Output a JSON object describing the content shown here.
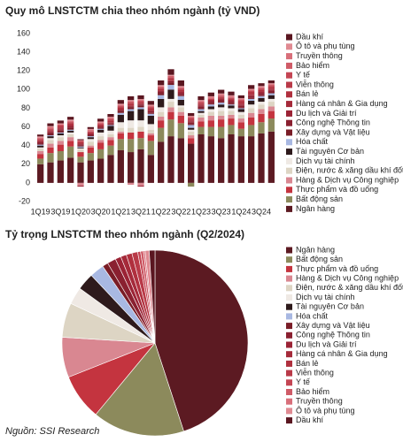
{
  "chart_data": [
    {
      "type": "stacked-bar",
      "title": "Quy mô LNSTCTM chia theo nhóm ngành (tỷ VND)",
      "categories": [
        "1Q19",
        null,
        "3Q19",
        null,
        "1Q20",
        null,
        "3Q20",
        null,
        "1Q21",
        null,
        "3Q21",
        null,
        "1Q22",
        null,
        "3Q22",
        null,
        "1Q23",
        null,
        "3Q23",
        null,
        "1Q24",
        null,
        "3Q24",
        null
      ],
      "ylim": [
        -20,
        160
      ],
      "yticks": [
        -20,
        0,
        20,
        40,
        60,
        80,
        100,
        120,
        140,
        160
      ],
      "grid": false,
      "series": [
        {
          "name": "Ngân hàng",
          "color": "#5c1a22",
          "values": [
            20,
            22,
            24,
            27,
            22,
            24,
            26,
            30,
            35,
            33,
            36,
            30,
            44,
            50,
            48,
            42,
            52,
            50,
            48,
            52,
            50,
            50,
            53,
            55
          ]
        },
        {
          "name": "Bất động sản",
          "color": "#8c8a5c",
          "values": [
            6,
            10,
            10,
            12,
            6,
            8,
            10,
            10,
            12,
            14,
            12,
            15,
            15,
            18,
            16,
            -4,
            8,
            10,
            12,
            10,
            8,
            12,
            12,
            14
          ]
        },
        {
          "name": "Thực phẩm và đồ uống",
          "color": "#c4343f",
          "values": [
            5,
            6,
            7,
            6,
            5,
            6,
            7,
            6,
            6,
            7,
            7,
            6,
            8,
            8,
            8,
            6,
            6,
            7,
            8,
            7,
            7,
            8,
            9,
            8
          ]
        },
        {
          "name": "Hàng & Dịch vụ Công nghiệp",
          "color": "#d98791",
          "values": [
            3,
            4,
            4,
            4,
            -3,
            2,
            3,
            3,
            2,
            -2,
            -3,
            2,
            4,
            5,
            4,
            3,
            4,
            5,
            4,
            4,
            4,
            5,
            5,
            5
          ]
        },
        {
          "name": "Điện, nước & xăng dầu khí đốt",
          "color": "#ddd5c4",
          "values": [
            3,
            4,
            4,
            3,
            3,
            4,
            4,
            3,
            4,
            5,
            5,
            4,
            5,
            6,
            5,
            4,
            3,
            4,
            5,
            4,
            4,
            5,
            5,
            5
          ]
        },
        {
          "name": "Dịch vụ tài chính",
          "color": "#efe9e4",
          "values": [
            1,
            2,
            2,
            2,
            1,
            3,
            4,
            4,
            6,
            8,
            7,
            6,
            5,
            3,
            2,
            2,
            2,
            3,
            4,
            3,
            3,
            4,
            3,
            3
          ]
        },
        {
          "name": "Tài nguyên Cơ bản",
          "color": "#2e1a1c",
          "values": [
            2,
            2,
            2,
            2,
            1,
            2,
            3,
            5,
            8,
            10,
            12,
            9,
            9,
            10,
            6,
            2,
            2,
            3,
            3,
            3,
            3,
            4,
            4,
            4
          ]
        },
        {
          "name": "Hóa chất",
          "color": "#a8b8e2",
          "values": [
            1,
            1,
            1,
            1,
            1,
            1,
            1,
            1,
            2,
            2,
            2,
            2,
            4,
            5,
            4,
            3,
            2,
            2,
            2,
            1,
            1,
            2,
            2,
            2
          ]
        },
        {
          "name": "Xây dựng và Vật liệu",
          "color": "#7a1d27",
          "values": [
            1,
            2,
            2,
            2,
            1,
            1,
            1,
            1,
            2,
            2,
            2,
            1,
            2,
            2,
            1,
            1,
            1,
            1,
            1,
            1,
            1,
            1,
            1,
            1
          ]
        },
        {
          "name": "Công nghệ Thông tin",
          "color": "#8a2030",
          "values": [
            1,
            1,
            1,
            1,
            1,
            1,
            1,
            1,
            1,
            1,
            1,
            2,
            2,
            2,
            2,
            2,
            2,
            2,
            2,
            2,
            2,
            2,
            2,
            2
          ]
        },
        {
          "name": "Du lịch và Giải trí",
          "color": "#9b2335",
          "values": [
            1,
            1,
            1,
            1,
            -1,
            0,
            0,
            0,
            0,
            0,
            -1,
            0,
            0,
            0,
            1,
            1,
            1,
            1,
            1,
            1,
            1,
            1,
            1,
            1
          ]
        },
        {
          "name": "Hàng cá nhân & Gia dụng",
          "color": "#a52a3a",
          "values": [
            1,
            1,
            1,
            1,
            1,
            1,
            1,
            1,
            1,
            1,
            1,
            1,
            1,
            1,
            1,
            1,
            1,
            1,
            1,
            1,
            1,
            1,
            1,
            1
          ]
        },
        {
          "name": "Bán lẻ",
          "color": "#b0303e",
          "values": [
            1,
            1,
            1,
            2,
            1,
            1,
            1,
            2,
            2,
            2,
            1,
            2,
            2,
            2,
            2,
            1,
            1,
            0,
            1,
            1,
            2,
            2,
            2,
            2
          ]
        },
        {
          "name": "Viễn thông",
          "color": "#b93a48",
          "values": [
            1,
            1,
            1,
            1,
            1,
            1,
            1,
            1,
            1,
            1,
            1,
            1,
            1,
            1,
            1,
            1,
            1,
            1,
            1,
            1,
            1,
            1,
            1,
            1
          ]
        },
        {
          "name": "Y tế",
          "color": "#c44553",
          "values": [
            0.5,
            0.5,
            0.5,
            0.5,
            0.5,
            0.5,
            0.5,
            0.5,
            0.5,
            0.5,
            0.5,
            0.5,
            0.5,
            0.5,
            0.5,
            0.5,
            0.5,
            0.5,
            0.5,
            0.5,
            0.5,
            0.5,
            0.5,
            0.5
          ]
        },
        {
          "name": "Bảo hiểm",
          "color": "#cf5b67",
          "values": [
            1,
            1,
            1,
            1,
            1,
            1,
            1,
            1,
            1,
            1,
            1,
            1,
            1,
            1,
            1,
            1,
            1,
            1,
            1,
            1,
            1,
            1,
            1,
            1
          ]
        },
        {
          "name": "Truyền thông",
          "color": "#d86f7a",
          "values": [
            0.3,
            0.3,
            0.3,
            0.3,
            0.3,
            0.3,
            0.3,
            0.3,
            0.3,
            0.3,
            0.3,
            0.3,
            0.3,
            0.3,
            0.3,
            0.3,
            0.3,
            0.3,
            0.3,
            0.3,
            0.3,
            0.3,
            0.3,
            0.3
          ]
        },
        {
          "name": "Ô tô và phụ tùng",
          "color": "#e08a92",
          "values": [
            1,
            1,
            1,
            1,
            0,
            1,
            1,
            1,
            1,
            1,
            1,
            1,
            1,
            1,
            1,
            1,
            1,
            1,
            1,
            1,
            1,
            1,
            1,
            1
          ]
        },
        {
          "name": "Dầu khí",
          "color": "#5a1620",
          "values": [
            2,
            3,
            3,
            3,
            1,
            2,
            3,
            3,
            4,
            4,
            4,
            4,
            5,
            6,
            6,
            3,
            4,
            4,
            4,
            4,
            3,
            4,
            3,
            3
          ]
        }
      ]
    },
    {
      "type": "pie",
      "title": "Tỷ trọng LNSTCTM theo nhóm ngành (Q2/2024)",
      "categories": [
        "Ngân hàng",
        "Bất động sản",
        "Thực phẩm và đồ uống",
        "Hàng & Dịch vụ Công nghiệp",
        "Điện, nước & xăng dầu khí đốt",
        "Dịch vụ tài chính",
        "Tài nguyên Cơ bản",
        "Hóa chất",
        "Xây dựng và Vật liệu",
        "Công nghệ Thông tin",
        "Du lịch và Giải trí",
        "Hàng cá nhân & Gia dụng",
        "Bán lẻ",
        "Viễn thông",
        "Y tế",
        "Bảo hiểm",
        "Truyền thông",
        "Ô tô và phụ tùng",
        "Dầu khí"
      ],
      "values": [
        45,
        16,
        8,
        7,
        6,
        3,
        3,
        2.5,
        1,
        1.5,
        1,
        1,
        1,
        1,
        0.5,
        0.5,
        0.3,
        0.7,
        1
      ],
      "colors": [
        "#5c1a22",
        "#8c8a5c",
        "#c4343f",
        "#d98791",
        "#ddd5c4",
        "#efe9e4",
        "#2e1a1c",
        "#a8b8e2",
        "#7a1d27",
        "#8a2030",
        "#9b2335",
        "#a52a3a",
        "#b0303e",
        "#b93a48",
        "#c44553",
        "#cf5b67",
        "#d86f7a",
        "#e08a92",
        "#5a1620"
      ]
    }
  ],
  "source": "Nguồn: SSI Research"
}
